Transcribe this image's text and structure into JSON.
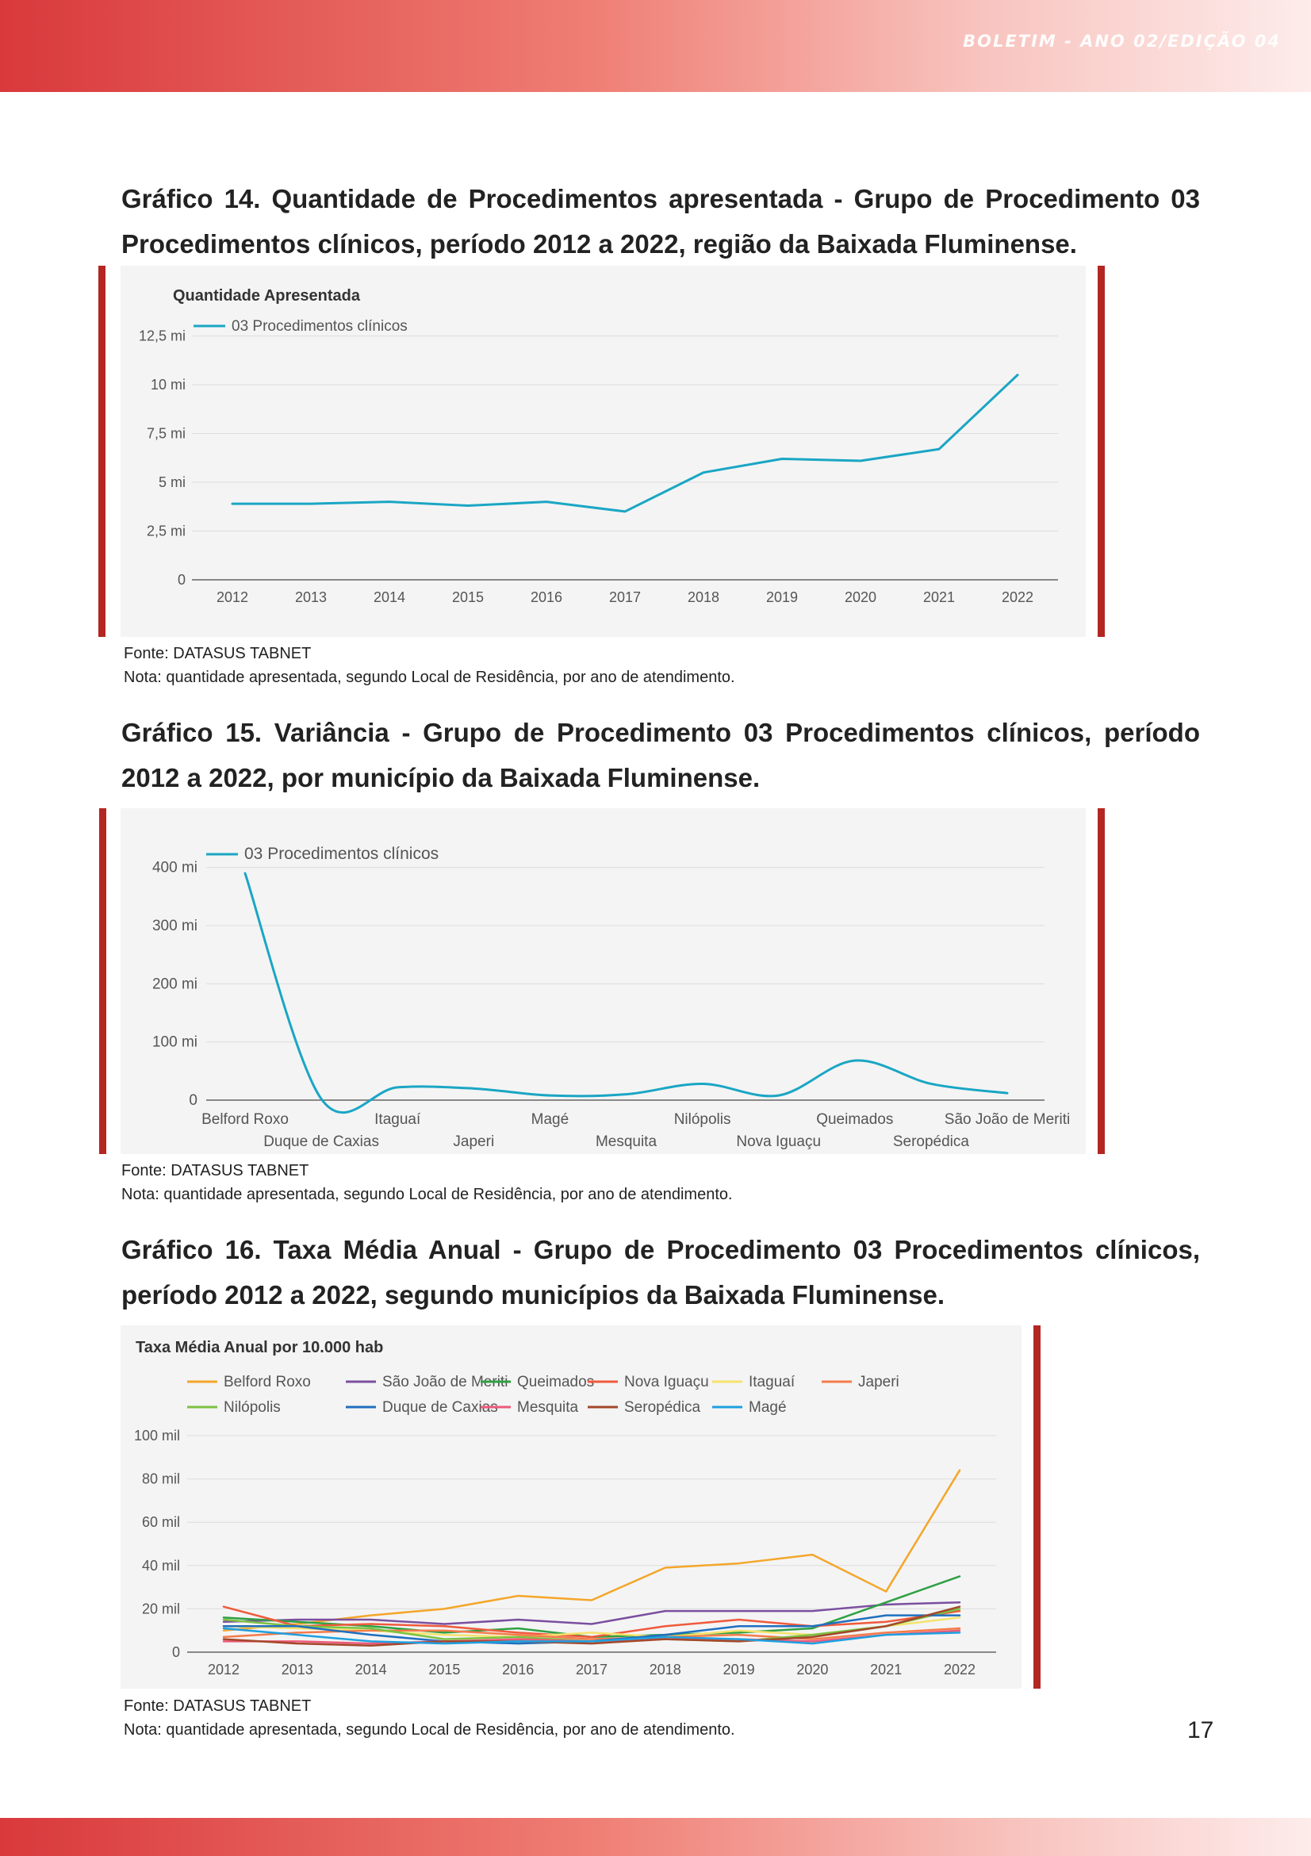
{
  "header": {
    "label": "BOLETIM - ANO 02/EDIÇÃO 04"
  },
  "page_number": "17",
  "figures": [
    {
      "caption": "Gráfico 14. Quantidade de Procedimentos apresentada - Grupo de Procedimento 03 Procedimentos clínicos, período 2012 a 2022, região da Baixada Fluminense.",
      "source": "Fonte: DATASUS TABNET",
      "note": "Nota: quantidade apresentada, segundo Local de Residência, por ano de atendimento."
    },
    {
      "caption": "Gráfico 15. Variância - Grupo de Procedimento 03 Procedimentos clínicos, período 2012 a 2022, por município da Baixada Fluminense.",
      "source": "Fonte: DATASUS TABNET",
      "note": "Nota: quantidade apresentada, segundo Local de Residência, por ano de atendimento."
    },
    {
      "caption": "Gráfico 16. Taxa Média Anual - Grupo de Procedimento 03 Procedimentos clínicos, período 2012 a 2022, segundo municípios da Baixada Fluminense.",
      "source": "Fonte: DATASUS TABNET",
      "note": "Nota: quantidade apresentada, segundo Local de Residência, por ano de atendimento."
    }
  ],
  "chart_data": [
    {
      "type": "line",
      "title": "Quantidade Apresentada",
      "x": [
        "2012",
        "2013",
        "2014",
        "2015",
        "2016",
        "2017",
        "2018",
        "2019",
        "2020",
        "2021",
        "2022"
      ],
      "series": [
        {
          "name": "03 Procedimentos clínicos",
          "color": "#1aa6c4",
          "values": [
            3.9,
            3.9,
            4.0,
            3.8,
            4.0,
            3.5,
            5.5,
            6.2,
            6.1,
            6.7,
            10.5
          ]
        }
      ],
      "yticks": [
        0,
        2.5,
        5,
        7.5,
        10,
        12.5
      ],
      "ytick_labels": [
        "0",
        "2,5 mi",
        "5 mi",
        "7,5 mi",
        "10 mi",
        "12,5 mi"
      ],
      "ylim": [
        0,
        13.5
      ],
      "legend": "top-left",
      "grid": true
    },
    {
      "type": "line",
      "title": "",
      "x": [
        "Belford Roxo",
        "Duque de Caxias",
        "Itaguaí",
        "Japeri",
        "Magé",
        "Mesquita",
        "Nilópolis",
        "Nova Iguaçu",
        "Queimados",
        "Seropédica",
        "São João de Meriti"
      ],
      "series": [
        {
          "name": "03 Procedimentos clínicos",
          "color": "#1aa6c4",
          "values": [
            390,
            2,
            22,
            20,
            8,
            10,
            28,
            8,
            68,
            28,
            12
          ]
        }
      ],
      "yticks": [
        0,
        100,
        200,
        300,
        400
      ],
      "ytick_labels": [
        "0",
        "100 mi",
        "200 mi",
        "300 mi",
        "400 mi"
      ],
      "ylim": [
        0,
        420
      ],
      "legend": "top-left",
      "grid": true
    },
    {
      "type": "line",
      "title": "Taxa Média Anual por 10.000 hab",
      "x": [
        "2012",
        "2013",
        "2014",
        "2015",
        "2016",
        "2017",
        "2018",
        "2019",
        "2020",
        "2021",
        "2022"
      ],
      "series": [
        {
          "name": "Belford Roxo",
          "color": "#f4a62a",
          "values": [
            10,
            13,
            17,
            20,
            26,
            24,
            39,
            41,
            45,
            28,
            84
          ]
        },
        {
          "name": "São João de Meriti",
          "color": "#7b4fa0",
          "values": [
            14,
            15,
            15,
            13,
            15,
            13,
            19,
            19,
            19,
            22,
            23
          ]
        },
        {
          "name": "Queimados",
          "color": "#2ea043",
          "values": [
            16,
            14,
            12,
            9,
            11,
            7,
            8,
            9,
            11,
            23,
            35
          ]
        },
        {
          "name": "Nova Iguaçu",
          "color": "#ef5a3c",
          "values": [
            21,
            12,
            13,
            12,
            9,
            7,
            12,
            15,
            12,
            14,
            19
          ]
        },
        {
          "name": "Itaguaí",
          "color": "#f5e36b",
          "values": [
            12,
            11,
            10,
            8,
            7,
            9,
            7,
            10,
            8,
            12,
            16
          ]
        },
        {
          "name": "Japeri",
          "color": "#f47b4a",
          "values": [
            7,
            9,
            10,
            10,
            8,
            6,
            7,
            8,
            6,
            9,
            11
          ]
        },
        {
          "name": "Nilópolis",
          "color": "#7cc142",
          "values": [
            15,
            12,
            11,
            6,
            7,
            5,
            6,
            5,
            8,
            12,
            20
          ]
        },
        {
          "name": "Duque de Caxias",
          "color": "#1f6fbf",
          "values": [
            12,
            12,
            8,
            5,
            4,
            5,
            8,
            12,
            12,
            17,
            17
          ]
        },
        {
          "name": "Mesquita",
          "color": "#ec5a7a",
          "values": [
            5,
            5,
            4,
            5,
            6,
            5,
            6,
            6,
            5,
            8,
            10
          ]
        },
        {
          "name": "Seropédica",
          "color": "#a3482a",
          "values": [
            6,
            4,
            3,
            5,
            5,
            4,
            6,
            5,
            7,
            12,
            21
          ]
        },
        {
          "name": "Magé",
          "color": "#1ea0e0",
          "values": [
            11,
            8,
            5,
            4,
            5,
            5,
            7,
            6,
            4,
            8,
            9
          ]
        }
      ],
      "yticks": [
        0,
        20,
        40,
        60,
        80,
        100
      ],
      "ytick_labels": [
        "0",
        "20 mil",
        "40 mil",
        "60 mil",
        "80 mil",
        "100 mil"
      ],
      "ylim": [
        0,
        100
      ],
      "legend": "top",
      "grid": true
    }
  ]
}
